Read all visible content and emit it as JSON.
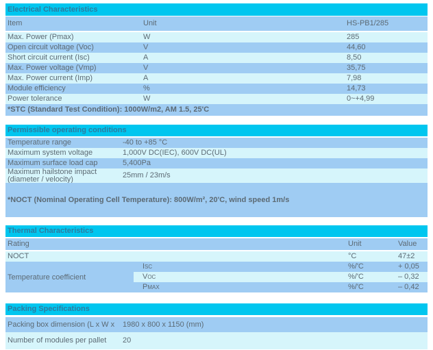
{
  "colors": {
    "section_header_bg": "#00c6ef",
    "section_header_text": "#2e7ba0",
    "row_blue": "#9fccf3",
    "row_light": "#d6f5fb",
    "body_text": "#5c6a74"
  },
  "electrical": {
    "title": "Electrical Characteristics",
    "columns": {
      "item": "Item",
      "unit": "Unit",
      "value": "HS-PB1/285"
    },
    "rows": [
      {
        "item": "Max. Power (Pmax)",
        "unit": "W",
        "value": "285"
      },
      {
        "item": "Open circuit voltage (Voc)",
        "unit": "V",
        "value": "44,60"
      },
      {
        "item": "Short circuit current (Isc)",
        "unit": "A",
        "value": "8,50"
      },
      {
        "item": "Max. Power voltage (Vmp)",
        "unit": "V",
        "value": "35,75"
      },
      {
        "item": "Max. Power current (Imp)",
        "unit": "A",
        "value": "7,98"
      },
      {
        "item": "Module efficiency",
        "unit": "%",
        "value": "14,73"
      },
      {
        "item": "Power tolerance",
        "unit": "W",
        "value": "0~+4,99"
      }
    ],
    "footnote": "*STC (Standard Test Condition): 1000W/m2, AM 1.5, 25'C"
  },
  "operating": {
    "title": "Permissible operating conditions",
    "rows": [
      {
        "label": "Temperature range",
        "value": "-40 to +85 °C"
      },
      {
        "label": "Maximum system voltage",
        "value": "1,000V DC(IEC), 600V DC(UL)"
      },
      {
        "label": "Maximum surface load cap",
        "value": "5,400Pa"
      },
      {
        "label": "Maximum hailstone impact (diameter / velocity)",
        "value": "25mm / 23m/s"
      }
    ],
    "footnote": "*NOCT (Nominal Operating Cell Temperature): 800W/m², 20'C, wind speed 1m/s"
  },
  "thermal": {
    "title": "Thermal Characteristics",
    "columns": {
      "rating": "Rating",
      "unit": "Unit",
      "value": "Value"
    },
    "noct": {
      "rating": "NOCT",
      "unit": "°C",
      "value": "47±2"
    },
    "coefficient": {
      "label": "Temperature coefficient",
      "rows": [
        {
          "sub": "Isc",
          "unit": "%/'C",
          "value": "+ 0,05"
        },
        {
          "sub": "Voc",
          "unit": "%/'C",
          "value": "– 0,32"
        },
        {
          "sub": "Pmax",
          "unit": "%/'C",
          "value": "– 0,42"
        }
      ]
    }
  },
  "packing": {
    "title": "Packing Specifications",
    "rows": [
      {
        "label": "Packing box dimension (L x W x H)",
        "value": "1980 x 800 x 1150 (mm)"
      },
      {
        "label": "Number of modules per pallet",
        "value": "20"
      }
    ]
  }
}
